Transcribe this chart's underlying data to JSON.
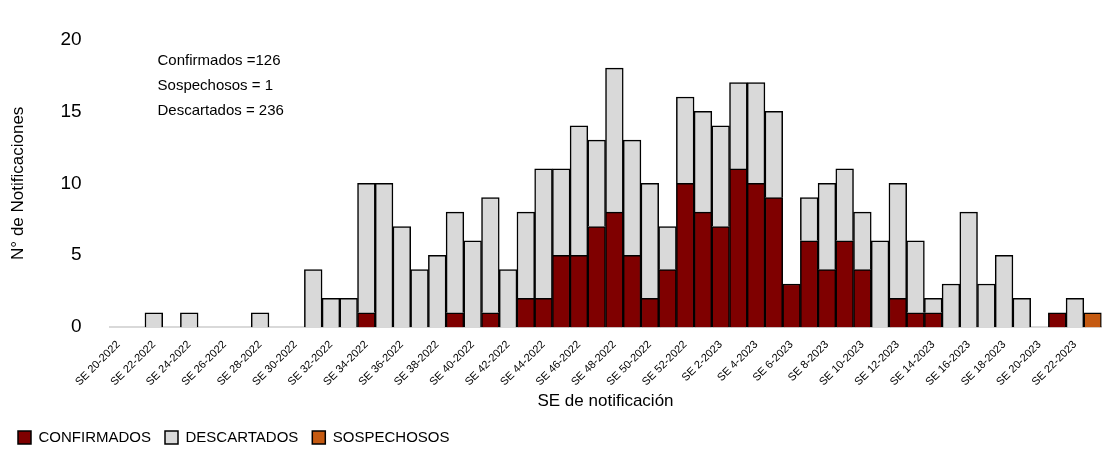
{
  "chart_data": {
    "type": "bar",
    "stacked": true,
    "xlabel": "SE de notificación",
    "ylabel": "N° de Notificaciones",
    "categories": [
      "SE 20-2022",
      null,
      "SE 22-2022",
      null,
      "SE 24-2022",
      null,
      "SE 26-2022",
      null,
      "SE 28-2022",
      null,
      "SE 30-2022",
      null,
      "SE 32-2022",
      null,
      "SE 34-2022",
      null,
      "SE 36-2022",
      null,
      "SE 38-2022",
      null,
      "SE 40-2022",
      null,
      "SE 42-2022",
      null,
      "SE 44-2022",
      null,
      "SE 46-2022",
      null,
      "SE 48-2022",
      null,
      "SE 50-2022",
      null,
      "SE 52-2022",
      null,
      "SE 2-2023",
      null,
      "SE 4-2023",
      null,
      "SE 6-2023",
      null,
      "SE 8-2023",
      null,
      "SE 10-2023",
      null,
      "SE 12-2023",
      null,
      "SE 14-2023",
      null,
      "SE 16-2023",
      null,
      "SE 18-2023",
      null,
      "SE 20-2023",
      null,
      "SE 22-2023",
      null
    ],
    "series": [
      {
        "name": "CONFIRMADOS",
        "color": "#7f0000",
        "values": [
          0,
          0,
          0,
          0,
          0,
          0,
          0,
          0,
          0,
          0,
          0,
          0,
          0,
          0,
          1,
          0,
          0,
          0,
          0,
          1,
          0,
          1,
          0,
          2,
          2,
          5,
          5,
          7,
          8,
          5,
          2,
          4,
          10,
          8,
          7,
          11,
          10,
          9,
          3,
          6,
          4,
          6,
          4,
          0,
          2,
          1,
          1,
          0,
          0,
          0,
          0,
          0,
          0,
          1,
          0,
          0
        ]
      },
      {
        "name": "DESCARTADOS",
        "color": "#d9d9d9",
        "values": [
          0,
          0,
          1,
          0,
          1,
          0,
          0,
          0,
          1,
          0,
          0,
          4,
          2,
          2,
          9,
          10,
          7,
          4,
          5,
          7,
          6,
          8,
          4,
          6,
          9,
          6,
          9,
          6,
          10,
          8,
          8,
          3,
          6,
          7,
          7,
          6,
          7,
          6,
          0,
          3,
          6,
          5,
          4,
          6,
          8,
          5,
          1,
          3,
          8,
          3,
          5,
          2,
          0,
          0,
          2,
          0
        ]
      },
      {
        "name": "SOSPECHOSOS",
        "color": "#c55a11",
        "values": [
          0,
          0,
          0,
          0,
          0,
          0,
          0,
          0,
          0,
          0,
          0,
          0,
          0,
          0,
          0,
          0,
          0,
          0,
          0,
          0,
          0,
          0,
          0,
          0,
          0,
          0,
          0,
          0,
          0,
          0,
          0,
          0,
          0,
          0,
          0,
          0,
          0,
          0,
          0,
          0,
          0,
          0,
          0,
          0,
          0,
          0,
          0,
          0,
          0,
          0,
          0,
          0,
          0,
          0,
          0,
          1
        ]
      }
    ],
    "ylim": [
      0,
      20
    ],
    "yticks": [
      0,
      5,
      10,
      15,
      20
    ],
    "grid": false,
    "legend": "bottom left",
    "annotations": [
      "Confirmados =126",
      "Sospechosos = 1",
      "Descartados = 236"
    ]
  }
}
